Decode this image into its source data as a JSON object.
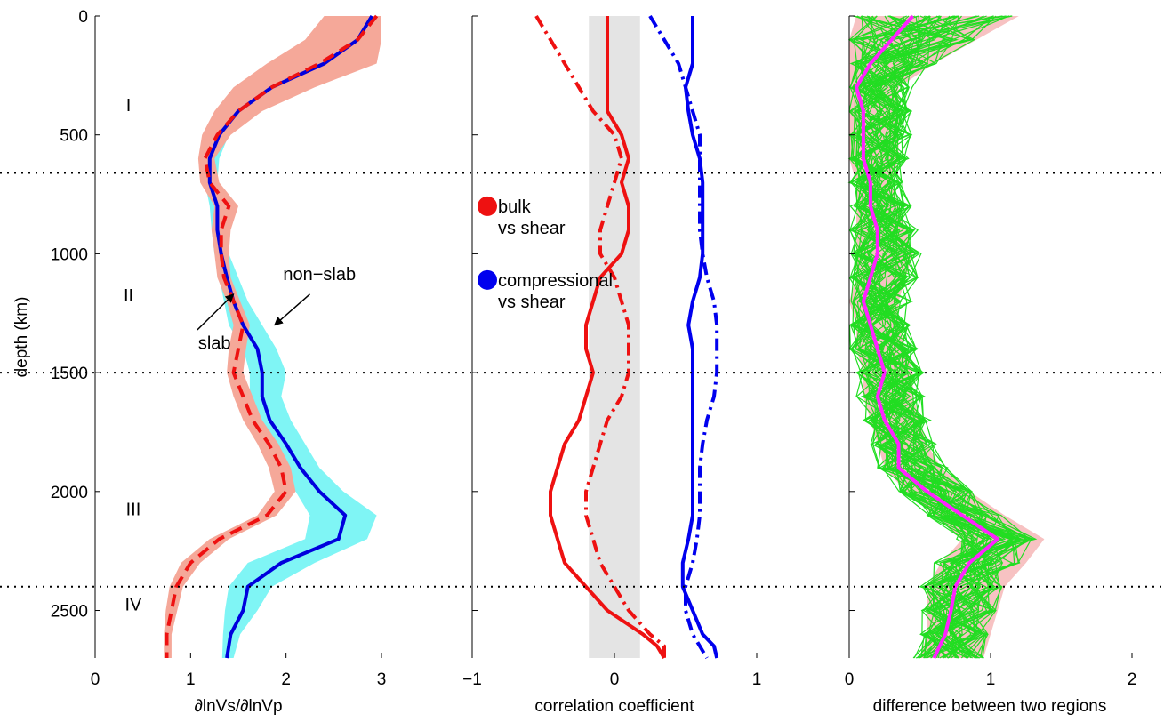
{
  "chart_data": [
    {
      "type": "line",
      "xlabel": "∂lnVs/∂lnVp",
      "ylabel": "depth (km)",
      "xlim": [
        0,
        3
      ],
      "ylim": [
        2700,
        0
      ],
      "xticks": [
        "0",
        "1",
        "2",
        "3"
      ],
      "yticks": [
        "0",
        "500",
        "1000",
        "1500",
        "2000",
        "2500"
      ],
      "xtick_values": [
        0,
        1,
        2,
        3
      ],
      "ytick_values": [
        0,
        500,
        1000,
        1500,
        2000,
        2500
      ],
      "reference_depths": [
        660,
        1500,
        2400
      ],
      "region_labels": [
        {
          "text": "I",
          "depth": 400,
          "x": 0.35
        },
        {
          "text": "II",
          "depth": 1200,
          "x": 0.35
        },
        {
          "text": "III",
          "depth": 2100,
          "x": 0.4
        },
        {
          "text": "IV",
          "depth": 2500,
          "x": 0.4
        }
      ],
      "annotations": [
        {
          "text": "slab",
          "x": 1.25,
          "depth": 1400,
          "arrow_to": [
            1.45,
            1170
          ],
          "arrow_from": [
            1.07,
            1320
          ]
        },
        {
          "text": "non−slab",
          "x": 2.35,
          "depth": 1110,
          "arrow_to": [
            1.88,
            1300
          ],
          "arrow_from": [
            2.25,
            1170
          ]
        }
      ],
      "series": [
        {
          "name": "non-slab",
          "color": "#0000dd",
          "band_color": "#7ff5f5",
          "depth": [
            0,
            100,
            200,
            300,
            400,
            500,
            600,
            700,
            800,
            900,
            1000,
            1100,
            1200,
            1300,
            1400,
            1500,
            1600,
            1700,
            1800,
            1900,
            2000,
            2100,
            2200,
            2300,
            2400,
            2500,
            2600,
            2700
          ],
          "values": [
            2.9,
            2.75,
            2.4,
            1.85,
            1.5,
            1.3,
            1.2,
            1.2,
            1.28,
            1.28,
            1.32,
            1.38,
            1.45,
            1.55,
            1.7,
            1.75,
            1.75,
            1.83,
            2.0,
            2.15,
            2.35,
            2.62,
            2.55,
            1.95,
            1.6,
            1.55,
            1.42,
            1.38
          ],
          "lower": [
            2.6,
            2.45,
            2.1,
            1.6,
            1.35,
            1.22,
            1.18,
            1.15,
            1.2,
            1.22,
            1.25,
            1.3,
            1.35,
            1.4,
            1.55,
            1.62,
            1.62,
            1.68,
            1.8,
            1.95,
            2.1,
            2.25,
            2.2,
            1.6,
            1.4,
            1.36,
            1.34,
            1.33
          ],
          "upper": [
            3.0,
            3.0,
            2.85,
            2.2,
            1.7,
            1.4,
            1.3,
            1.28,
            1.35,
            1.38,
            1.4,
            1.5,
            1.6,
            1.75,
            1.9,
            2.0,
            1.95,
            2.05,
            2.2,
            2.35,
            2.6,
            2.95,
            2.85,
            2.3,
            1.85,
            1.7,
            1.52,
            1.45
          ]
        },
        {
          "name": "slab",
          "color": "#ee1111",
          "band_color": "#f5a899",
          "depth": [
            0,
            100,
            200,
            300,
            400,
            500,
            600,
            700,
            800,
            900,
            1000,
            1100,
            1200,
            1300,
            1400,
            1500,
            1600,
            1700,
            1800,
            1900,
            2000,
            2100,
            2200,
            2300,
            2400,
            2500,
            2600,
            2700
          ],
          "values": [
            2.95,
            2.75,
            2.35,
            1.85,
            1.5,
            1.28,
            1.15,
            1.2,
            1.4,
            1.32,
            1.32,
            1.35,
            1.45,
            1.55,
            1.5,
            1.45,
            1.55,
            1.65,
            1.82,
            1.95,
            2.0,
            1.8,
            1.3,
            1.0,
            0.85,
            0.8,
            0.75,
            0.75
          ],
          "lower": [
            2.4,
            2.2,
            1.8,
            1.45,
            1.25,
            1.12,
            1.08,
            1.1,
            1.25,
            1.22,
            1.25,
            1.28,
            1.38,
            1.45,
            1.4,
            1.38,
            1.45,
            1.55,
            1.7,
            1.82,
            1.88,
            1.7,
            1.2,
            0.9,
            0.78,
            0.74,
            0.72,
            0.72
          ],
          "upper": [
            3.0,
            3.0,
            2.95,
            2.3,
            1.75,
            1.42,
            1.25,
            1.3,
            1.5,
            1.42,
            1.4,
            1.42,
            1.52,
            1.62,
            1.58,
            1.55,
            1.65,
            1.75,
            1.92,
            2.05,
            2.1,
            1.9,
            1.4,
            1.1,
            0.92,
            0.86,
            0.8,
            0.8
          ]
        }
      ]
    },
    {
      "type": "line",
      "xlabel": "correlation coefficient",
      "ylabel": "",
      "xlim": [
        -1,
        1
      ],
      "ylim": [
        2700,
        0
      ],
      "xticks": [
        "−1",
        "0",
        "1"
      ],
      "xtick_values": [
        -1,
        0,
        1
      ],
      "ytick_values": [
        0,
        500,
        1000,
        1500,
        2000,
        2500
      ],
      "reference_depths": [
        660,
        1500,
        2400
      ],
      "shaded_band": {
        "x_range": [
          -0.18,
          0.18
        ],
        "color": "#e4e4e4"
      },
      "legend": [
        {
          "text_line1": "bulk",
          "text_line2": "vs shear",
          "color": "#ee1111",
          "depth": 800
        },
        {
          "text_line1": "compressional",
          "text_line2": "vs shear",
          "color": "#0000ee",
          "depth": 1110
        }
      ],
      "series": [
        {
          "name": "bulk vs shear",
          "color": "#ee1111",
          "style": "solid",
          "depth": [
            0,
            50,
            100,
            200,
            300,
            400,
            500,
            600,
            700,
            800,
            900,
            1000,
            1100,
            1200,
            1300,
            1400,
            1500,
            1600,
            1700,
            1800,
            1900,
            2000,
            2100,
            2200,
            2300,
            2400,
            2500,
            2600,
            2650,
            2700
          ],
          "values": [
            -0.05,
            -0.05,
            -0.05,
            -0.05,
            -0.05,
            -0.05,
            0.05,
            0.1,
            0.05,
            0.1,
            0.1,
            0.05,
            -0.1,
            -0.15,
            -0.2,
            -0.2,
            -0.15,
            -0.2,
            -0.25,
            -0.35,
            -0.4,
            -0.45,
            -0.45,
            -0.4,
            -0.35,
            -0.2,
            -0.05,
            0.2,
            0.3,
            0.35
          ]
        },
        {
          "name": "bulk vs shear (slab)",
          "color": "#ee1111",
          "style": "dashdot",
          "depth": [
            0,
            50,
            100,
            200,
            300,
            400,
            500,
            600,
            700,
            800,
            900,
            1000,
            1100,
            1200,
            1300,
            1400,
            1500,
            1600,
            1700,
            1800,
            1900,
            2000,
            2100,
            2200,
            2300,
            2400,
            2500,
            2600,
            2650,
            2700
          ],
          "values": [
            -0.55,
            -0.5,
            -0.45,
            -0.35,
            -0.25,
            -0.15,
            0.0,
            0.05,
            0.0,
            -0.05,
            -0.1,
            -0.1,
            0.0,
            0.05,
            0.1,
            0.1,
            0.1,
            0.05,
            -0.05,
            -0.1,
            -0.15,
            -0.2,
            -0.2,
            -0.15,
            -0.1,
            0.0,
            0.1,
            0.25,
            0.35,
            0.35
          ]
        },
        {
          "name": "compressional vs shear",
          "color": "#0000ee",
          "style": "solid",
          "depth": [
            0,
            50,
            100,
            200,
            300,
            400,
            500,
            600,
            700,
            800,
            900,
            1000,
            1100,
            1200,
            1300,
            1400,
            1500,
            1600,
            1700,
            1800,
            1900,
            2000,
            2100,
            2200,
            2300,
            2400,
            2500,
            2600,
            2650,
            2700
          ],
          "values": [
            0.55,
            0.55,
            0.55,
            0.55,
            0.5,
            0.52,
            0.55,
            0.6,
            0.62,
            0.62,
            0.62,
            0.62,
            0.6,
            0.55,
            0.52,
            0.55,
            0.55,
            0.55,
            0.55,
            0.55,
            0.55,
            0.55,
            0.55,
            0.52,
            0.48,
            0.48,
            0.55,
            0.62,
            0.7,
            0.72
          ]
        },
        {
          "name": "compressional vs shear (slab)",
          "color": "#0000ee",
          "style": "dashdot",
          "depth": [
            0,
            50,
            100,
            200,
            300,
            400,
            500,
            600,
            700,
            800,
            900,
            1000,
            1100,
            1200,
            1300,
            1400,
            1500,
            1600,
            1700,
            1800,
            1900,
            2000,
            2100,
            2200,
            2300,
            2400,
            2500,
            2600,
            2650,
            2700
          ],
          "values": [
            0.25,
            0.3,
            0.35,
            0.45,
            0.5,
            0.55,
            0.6,
            0.6,
            0.6,
            0.6,
            0.6,
            0.62,
            0.65,
            0.7,
            0.72,
            0.72,
            0.72,
            0.7,
            0.65,
            0.62,
            0.6,
            0.6,
            0.6,
            0.58,
            0.55,
            0.5,
            0.5,
            0.55,
            0.6,
            0.65
          ]
        }
      ]
    },
    {
      "type": "line",
      "xlabel": "difference between two regions",
      "ylabel": "",
      "xlim": [
        0,
        2
      ],
      "ylim": [
        2700,
        0
      ],
      "xticks": [
        "0",
        "1",
        "2"
      ],
      "xtick_values": [
        0,
        1,
        2
      ],
      "ytick_values": [
        0,
        500,
        1000,
        1500,
        2000,
        2500
      ],
      "reference_depths": [
        660,
        1500,
        2400
      ],
      "band_color": "#f7c2c2",
      "ensemble_color": "#22dd22",
      "series": [
        {
          "name": "mean",
          "color": "#ff22ff",
          "depth": [
            0,
            100,
            200,
            300,
            400,
            500,
            600,
            700,
            800,
            900,
            1000,
            1100,
            1200,
            1300,
            1400,
            1500,
            1600,
            1700,
            1800,
            1900,
            2000,
            2100,
            2200,
            2300,
            2400,
            2500,
            2600,
            2700
          ],
          "values": [
            0.45,
            0.3,
            0.15,
            0.05,
            0.1,
            0.1,
            0.1,
            0.15,
            0.15,
            0.2,
            0.2,
            0.15,
            0.1,
            0.15,
            0.2,
            0.25,
            0.2,
            0.25,
            0.35,
            0.35,
            0.55,
            0.8,
            1.05,
            0.85,
            0.75,
            0.72,
            0.68,
            0.6
          ],
          "lower": [
            0.05,
            0.0,
            0.0,
            0.0,
            0.0,
            0.0,
            0.0,
            0.05,
            0.05,
            0.05,
            0.05,
            0.05,
            0.0,
            0.05,
            0.05,
            0.1,
            0.1,
            0.15,
            0.2,
            0.25,
            0.4,
            0.6,
            0.8,
            0.65,
            0.55,
            0.55,
            0.55,
            0.5
          ],
          "upper": [
            1.2,
            0.9,
            0.6,
            0.35,
            0.35,
            0.35,
            0.35,
            0.3,
            0.35,
            0.4,
            0.45,
            0.4,
            0.35,
            0.35,
            0.4,
            0.45,
            0.45,
            0.5,
            0.55,
            0.65,
            0.85,
            1.1,
            1.38,
            1.25,
            1.1,
            1.05,
            1.0,
            0.95
          ]
        }
      ]
    }
  ]
}
